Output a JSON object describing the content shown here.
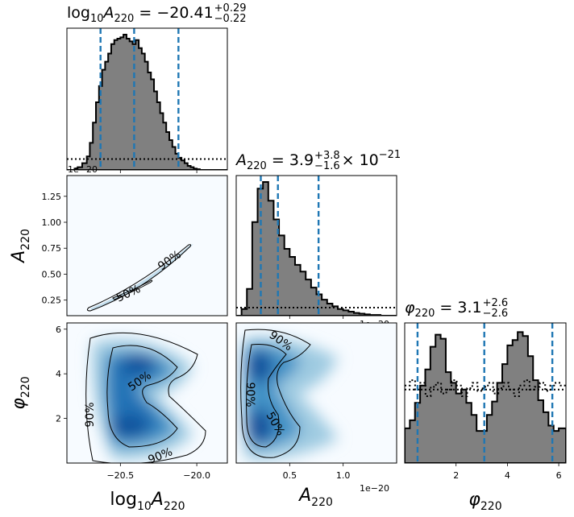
{
  "chart_data": [
    {
      "type": "histogram",
      "panel": "diag-0",
      "title_main": "log",
      "title_sub": "10",
      "title_var": "A",
      "title_varsub": "220",
      "title_eq": " = −20.41",
      "title_sup": "+0.29",
      "title_inf": "−0.22",
      "xlim": [
        -20.85,
        -19.8
      ],
      "quantiles": [
        -20.63,
        -20.41,
        -20.12
      ],
      "offset_text": "1e−20",
      "hist_x": [
        -20.85,
        -20.82,
        -20.8,
        -20.78,
        -20.75,
        -20.72,
        -20.7,
        -20.68,
        -20.66,
        -20.64,
        -20.62,
        -20.6,
        -20.58,
        -20.56,
        -20.54,
        -20.52,
        -20.5,
        -20.48,
        -20.46,
        -20.44,
        -20.42,
        -20.4,
        -20.38,
        -20.36,
        -20.34,
        -20.32,
        -20.3,
        -20.28,
        -20.26,
        -20.24,
        -20.22,
        -20.2,
        -20.18,
        -20.16,
        -20.14,
        -20.12,
        -20.1,
        -20.08,
        -20.06,
        -20.04,
        -20.02,
        -20.0,
        -19.98,
        -19.95,
        -19.9,
        -19.85,
        -19.8
      ],
      "hist_y": [
        0.0,
        0.0,
        0.01,
        0.02,
        0.05,
        0.1,
        0.2,
        0.35,
        0.5,
        0.62,
        0.74,
        0.8,
        0.86,
        0.93,
        0.96,
        0.97,
        0.98,
        1.0,
        0.97,
        0.95,
        0.93,
        0.96,
        0.9,
        0.86,
        0.8,
        0.72,
        0.67,
        0.58,
        0.5,
        0.42,
        0.35,
        0.28,
        0.22,
        0.17,
        0.12,
        0.09,
        0.07,
        0.05,
        0.03,
        0.02,
        0.01,
        0.005,
        0.0,
        0.0,
        0.0,
        0.0,
        0.0
      ],
      "prior_level": 0.08
    },
    {
      "type": "histogram",
      "panel": "diag-1",
      "title_var": "A",
      "title_varsub": "220",
      "title_eq": " = 3.9",
      "title_sup": "+3.8",
      "title_inf": "−1.6",
      "title_tail": " × 10",
      "title_exp": "−21",
      "xlim": [
        0.0,
        1.5
      ],
      "quantiles": [
        0.23,
        0.39,
        0.77
      ],
      "offset_text": "1e−20",
      "hist_x": [
        0.0,
        0.05,
        0.1,
        0.15,
        0.2,
        0.25,
        0.3,
        0.35,
        0.4,
        0.45,
        0.5,
        0.55,
        0.6,
        0.65,
        0.7,
        0.75,
        0.8,
        0.85,
        0.9,
        0.95,
        1.0,
        1.05,
        1.1,
        1.15,
        1.2,
        1.25,
        1.3,
        1.35,
        1.4,
        1.45,
        1.5
      ],
      "hist_y": [
        0.0,
        0.05,
        0.2,
        0.7,
        0.95,
        1.0,
        0.86,
        0.72,
        0.6,
        0.5,
        0.44,
        0.38,
        0.33,
        0.27,
        0.21,
        0.16,
        0.12,
        0.09,
        0.07,
        0.05,
        0.04,
        0.03,
        0.02,
        0.015,
        0.01,
        0.005,
        0.005,
        0.0,
        0.0,
        0.0,
        0.0
      ],
      "prior_level": 0.06
    },
    {
      "type": "histogram",
      "panel": "diag-2",
      "title_var": "φ",
      "title_varsub": "220",
      "title_eq": " = 3.1",
      "title_sup": "+2.6",
      "title_inf": "−2.6",
      "xlim": [
        0.0,
        6.28
      ],
      "quantiles": [
        0.5,
        3.1,
        5.75
      ],
      "hist_x": [
        0.0,
        0.2,
        0.4,
        0.6,
        0.8,
        1.0,
        1.2,
        1.4,
        1.6,
        1.8,
        2.0,
        2.2,
        2.4,
        2.6,
        2.8,
        3.0,
        3.2,
        3.4,
        3.6,
        3.8,
        4.0,
        4.2,
        4.4,
        4.6,
        4.8,
        5.0,
        5.2,
        5.4,
        5.6,
        5.8,
        6.0,
        6.28
      ],
      "hist_y": [
        0.26,
        0.32,
        0.45,
        0.58,
        0.7,
        0.87,
        0.96,
        0.93,
        0.68,
        0.6,
        0.52,
        0.55,
        0.45,
        0.36,
        0.24,
        0.24,
        0.36,
        0.46,
        0.6,
        0.74,
        0.88,
        0.92,
        0.98,
        0.95,
        0.8,
        0.62,
        0.47,
        0.38,
        0.28,
        0.24,
        0.26,
        0.26
      ],
      "prior_level": 0.55
    },
    {
      "type": "contour",
      "panel": "pair-1-0",
      "xlim": [
        -20.85,
        -19.8
      ],
      "ylim": [
        0.1,
        1.45
      ],
      "contour_labels": [
        "50%",
        "90%"
      ]
    },
    {
      "type": "contour",
      "panel": "pair-2-0",
      "xlim": [
        -20.85,
        -19.8
      ],
      "ylim": [
        0.0,
        6.28
      ],
      "contour_labels": [
        "50%",
        "90%",
        "90%",
        "90%"
      ]
    },
    {
      "type": "contour",
      "panel": "pair-2-1",
      "xlim": [
        0.0,
        1.5
      ],
      "ylim": [
        0.0,
        6.28
      ],
      "contour_labels": [
        "90%",
        "90%",
        "50%"
      ]
    }
  ],
  "axes": {
    "x0_ticks": [
      "−20.5",
      "−20.0"
    ],
    "x0_tick_vals": [
      -20.5,
      -20.0
    ],
    "x1_ticks": [
      "0.5",
      "1.0"
    ],
    "x1_tick_vals": [
      0.5,
      1.0
    ],
    "x2_ticks": [
      "2",
      "4",
      "6"
    ],
    "x2_tick_vals": [
      2,
      4,
      6
    ],
    "yA_ticks": [
      "1.25",
      "1.00",
      "0.75",
      "0.50",
      "0.25"
    ],
    "yA_tick_vals": [
      1.25,
      1.0,
      0.75,
      0.5,
      0.25
    ],
    "yPhi_ticks": [
      "6",
      "4",
      "2"
    ],
    "yPhi_tick_vals": [
      6,
      4,
      2
    ],
    "x0_label_main": "log",
    "x0_label_sub": "10",
    "x0_label_var": "A",
    "x0_label_varsub": "220",
    "x1_label_var": "A",
    "x1_label_varsub": "220",
    "x1_offset": "1e−20",
    "x2_label_var": "φ",
    "x2_label_varsub": "220",
    "yA_label_var": "A",
    "yA_label_varsub": "220",
    "yPhi_label_var": "φ",
    "yPhi_label_varsub": "220"
  },
  "colors": {
    "quantile": "#1f77b4",
    "hist_fill": "#808080",
    "density_low": "#f7fbff",
    "density_high": "#08306b"
  }
}
